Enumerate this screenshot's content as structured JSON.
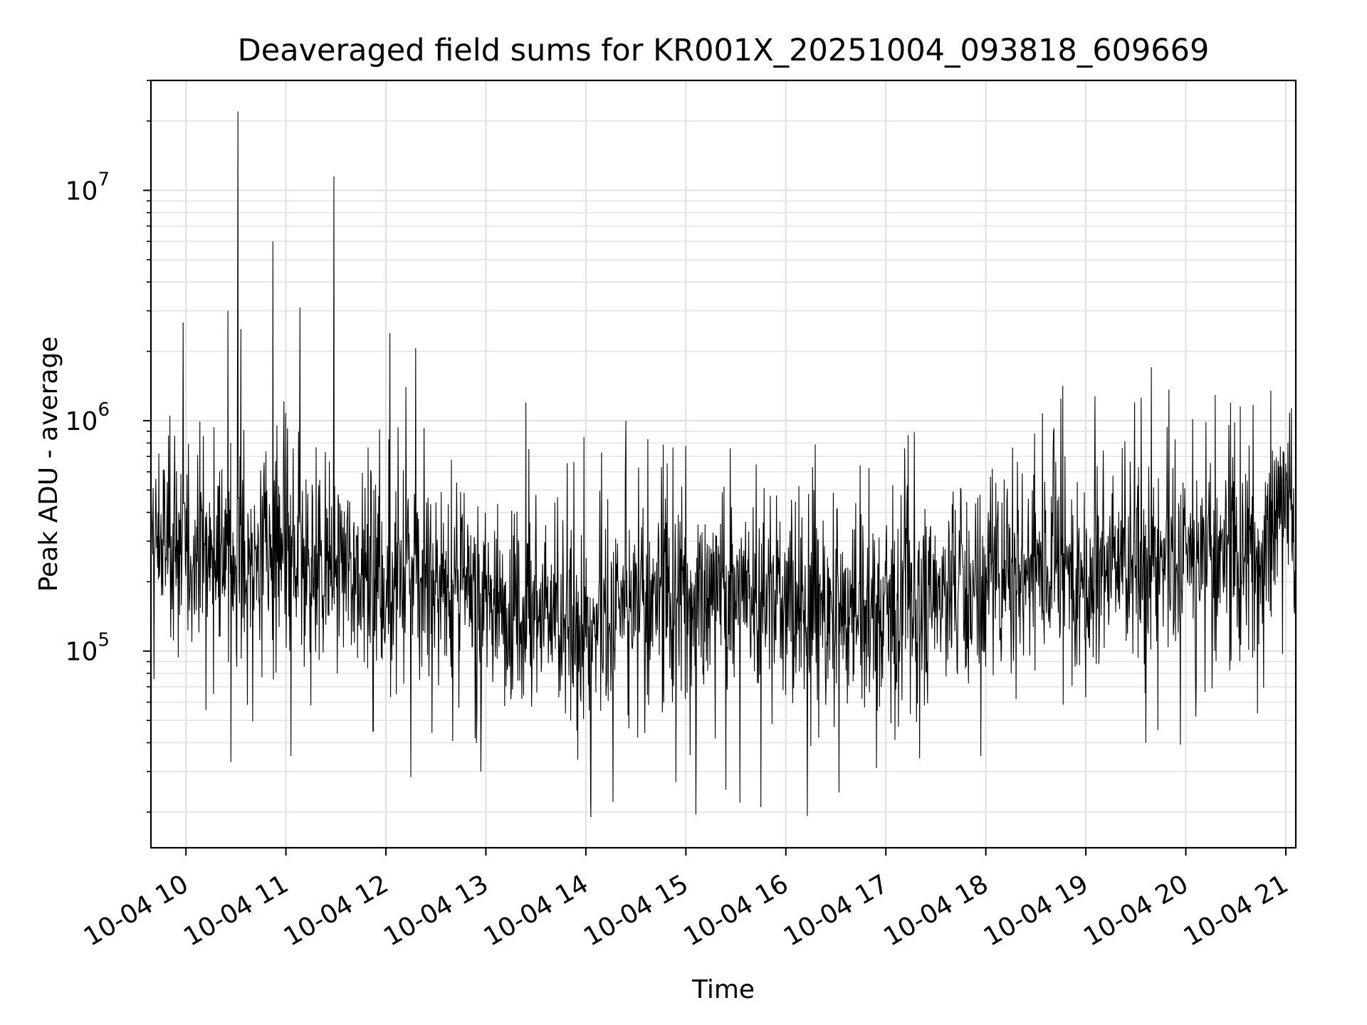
{
  "chart_data": {
    "type": "line",
    "title": "Deaveraged field sums for KR001X_20251004_093818_609669",
    "xlabel": "Time",
    "ylabel": "Peak ADU - average",
    "yscale": "log",
    "grid": true,
    "xlim_hours": [
      9.65,
      21.1
    ],
    "ylim": [
      14000,
      30000000
    ],
    "x_ticks": [
      {
        "hour": 10,
        "label": "10-04 10"
      },
      {
        "hour": 11,
        "label": "10-04 11"
      },
      {
        "hour": 12,
        "label": "10-04 12"
      },
      {
        "hour": 13,
        "label": "10-04 13"
      },
      {
        "hour": 14,
        "label": "10-04 14"
      },
      {
        "hour": 15,
        "label": "10-04 15"
      },
      {
        "hour": 16,
        "label": "10-04 16"
      },
      {
        "hour": 17,
        "label": "10-04 17"
      },
      {
        "hour": 18,
        "label": "10-04 18"
      },
      {
        "hour": 19,
        "label": "10-04 19"
      },
      {
        "hour": 20,
        "label": "10-04 20"
      },
      {
        "hour": 21,
        "label": "10-04 21"
      }
    ],
    "y_ticks": [
      {
        "value": 100000,
        "base": "10",
        "exp": "5"
      },
      {
        "value": 1000000,
        "base": "10",
        "exp": "6"
      },
      {
        "value": 10000000,
        "base": "10",
        "exp": "7"
      }
    ],
    "series": [
      {
        "name": "Peak ADU - average",
        "color": "#000000",
        "baseline_profile": [
          {
            "hour": 9.65,
            "value": 300000
          },
          {
            "hour": 10.0,
            "value": 290000
          },
          {
            "hour": 10.5,
            "value": 250000
          },
          {
            "hour": 11.0,
            "value": 240000
          },
          {
            "hour": 11.5,
            "value": 230000
          },
          {
            "hour": 12.0,
            "value": 210000
          },
          {
            "hour": 12.5,
            "value": 200000
          },
          {
            "hour": 13.0,
            "value": 170000
          },
          {
            "hour": 13.5,
            "value": 150000
          },
          {
            "hour": 14.0,
            "value": 120000
          },
          {
            "hour": 14.5,
            "value": 160000
          },
          {
            "hour": 15.0,
            "value": 180000
          },
          {
            "hour": 15.5,
            "value": 190000
          },
          {
            "hour": 16.0,
            "value": 160000
          },
          {
            "hour": 16.5,
            "value": 150000
          },
          {
            "hour": 17.0,
            "value": 150000
          },
          {
            "hour": 17.5,
            "value": 180000
          },
          {
            "hour": 18.0,
            "value": 220000
          },
          {
            "hour": 18.5,
            "value": 240000
          },
          {
            "hour": 19.0,
            "value": 230000
          },
          {
            "hour": 19.5,
            "value": 240000
          },
          {
            "hour": 20.0,
            "value": 250000
          },
          {
            "hour": 20.5,
            "value": 260000
          },
          {
            "hour": 20.8,
            "value": 280000
          },
          {
            "hour": 20.9,
            "value": 450000
          },
          {
            "hour": 21.1,
            "value": 400000
          }
        ],
        "notable_peaks": [
          {
            "hour": 10.52,
            "value": 22000000
          },
          {
            "hour": 11.48,
            "value": 11500000
          },
          {
            "hour": 10.87,
            "value": 6000000
          },
          {
            "hour": 11.14,
            "value": 3100000
          },
          {
            "hour": 10.42,
            "value": 3000000
          },
          {
            "hour": 10.55,
            "value": 2500000
          },
          {
            "hour": 12.04,
            "value": 2400000
          },
          {
            "hour": 12.2,
            "value": 1400000
          },
          {
            "hour": 20.85,
            "value": 1350000
          },
          {
            "hour": 18.75,
            "value": 1250000
          },
          {
            "hour": 13.4,
            "value": 1200000
          },
          {
            "hour": 14.4,
            "value": 1000000
          }
        ],
        "notable_troughs": [
          {
            "hour": 14.05,
            "value": 19000
          },
          {
            "hour": 15.1,
            "value": 19500
          },
          {
            "hour": 15.75,
            "value": 21000
          },
          {
            "hour": 15.4,
            "value": 25000
          },
          {
            "hour": 14.9,
            "value": 27000
          },
          {
            "hour": 12.95,
            "value": 30000
          },
          {
            "hour": 10.45,
            "value": 33000
          },
          {
            "hour": 11.05,
            "value": 35000
          },
          {
            "hour": 17.95,
            "value": 35000
          },
          {
            "hour": 19.6,
            "value": 40000
          },
          {
            "hour": 20.1,
            "value": 52000
          }
        ]
      }
    ]
  }
}
